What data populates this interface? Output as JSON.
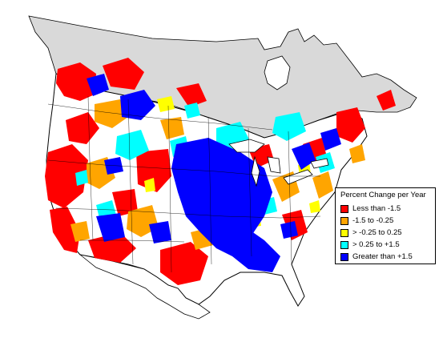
{
  "map": {
    "land_color": "#ffffff",
    "no_data_color": "#d9d9d9",
    "border_color": "#000000"
  },
  "legend": {
    "title": "Percent Change per Year",
    "items": [
      {
        "label": "Less than -1.5",
        "color": "#ff0000"
      },
      {
        "label": "-1.5 to -0.25",
        "color": "#ffa500"
      },
      {
        "label": "> -0.25 to 0.25",
        "color": "#ffff00"
      },
      {
        "label": "> 0.25 to +1.5",
        "color": "#00ffff"
      },
      {
        "label": "Greater than +1.5",
        "color": "#0000ff"
      }
    ]
  }
}
